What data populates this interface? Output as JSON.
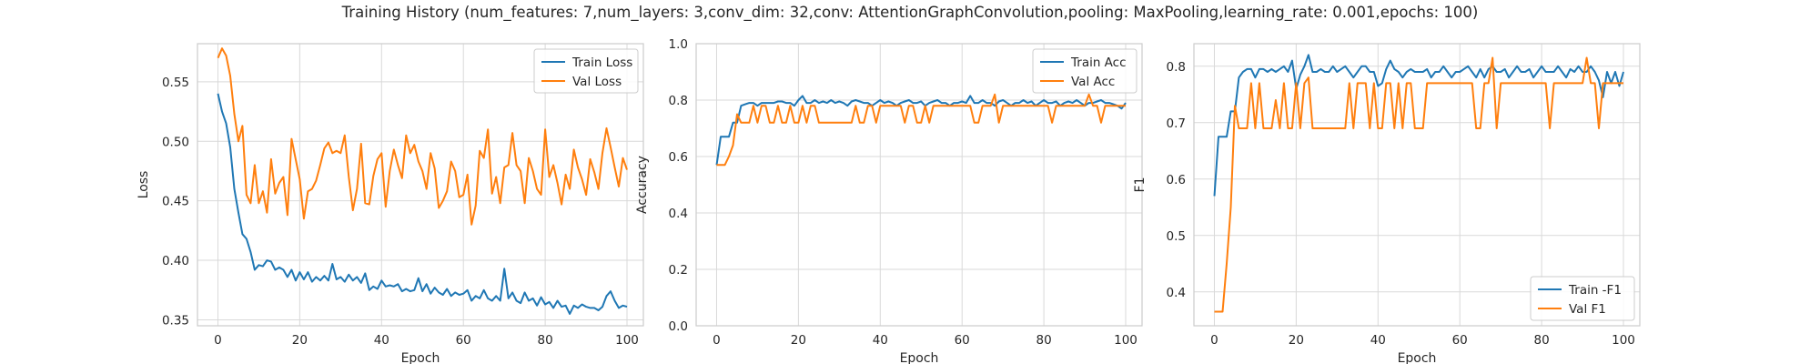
{
  "title": "Training History (num_features: 7,num_layers: 3,conv_dim: 32,conv: AttentionGraphConvolution,pooling: MaxPooling,learning_rate: 0.001,epochs: 100)",
  "colors": {
    "blue": "#1f77b4",
    "orange": "#ff7f0e",
    "grid": "#d9d9d9",
    "frame": "#cccccc"
  },
  "chart_data": [
    {
      "type": "line",
      "xlabel": "Epoch",
      "ylabel": "Loss",
      "xlim": [
        -5,
        104
      ],
      "ylim": [
        0.345,
        0.582
      ],
      "xticks": [
        "0",
        "20",
        "40",
        "60",
        "80",
        "100"
      ],
      "yticks": [
        "0.35",
        "0.40",
        "0.45",
        "0.50",
        "0.55"
      ],
      "grid": true,
      "legend": "top-right",
      "x_start": 0,
      "series": [
        {
          "name": "Train Loss",
          "color": "#1f77b4",
          "values": [
            0.54,
            0.525,
            0.515,
            0.495,
            0.46,
            0.44,
            0.422,
            0.418,
            0.407,
            0.392,
            0.396,
            0.395,
            0.4,
            0.399,
            0.392,
            0.394,
            0.392,
            0.386,
            0.392,
            0.383,
            0.39,
            0.384,
            0.39,
            0.382,
            0.386,
            0.383,
            0.387,
            0.383,
            0.397,
            0.384,
            0.386,
            0.382,
            0.388,
            0.383,
            0.386,
            0.381,
            0.389,
            0.375,
            0.378,
            0.376,
            0.383,
            0.378,
            0.379,
            0.378,
            0.38,
            0.374,
            0.376,
            0.374,
            0.375,
            0.385,
            0.374,
            0.38,
            0.372,
            0.377,
            0.373,
            0.371,
            0.376,
            0.37,
            0.373,
            0.371,
            0.372,
            0.375,
            0.366,
            0.37,
            0.368,
            0.375,
            0.368,
            0.366,
            0.37,
            0.366,
            0.393,
            0.368,
            0.373,
            0.366,
            0.364,
            0.373,
            0.366,
            0.368,
            0.362,
            0.369,
            0.363,
            0.365,
            0.36,
            0.366,
            0.361,
            0.362,
            0.355,
            0.362,
            0.36,
            0.363,
            0.361,
            0.36,
            0.36,
            0.358,
            0.361,
            0.37,
            0.374,
            0.366,
            0.36,
            0.362,
            0.361
          ]
        },
        {
          "name": "Val Loss",
          "color": "#ff7f0e",
          "values": [
            0.57,
            0.578,
            0.572,
            0.555,
            0.523,
            0.5,
            0.513,
            0.455,
            0.448,
            0.48,
            0.448,
            0.458,
            0.44,
            0.485,
            0.456,
            0.465,
            0.47,
            0.438,
            0.502,
            0.485,
            0.468,
            0.435,
            0.458,
            0.46,
            0.467,
            0.48,
            0.494,
            0.499,
            0.49,
            0.492,
            0.49,
            0.505,
            0.47,
            0.442,
            0.46,
            0.498,
            0.448,
            0.447,
            0.471,
            0.485,
            0.49,
            0.445,
            0.475,
            0.493,
            0.48,
            0.469,
            0.505,
            0.49,
            0.497,
            0.483,
            0.475,
            0.46,
            0.49,
            0.477,
            0.444,
            0.45,
            0.458,
            0.483,
            0.475,
            0.453,
            0.455,
            0.472,
            0.43,
            0.446,
            0.492,
            0.486,
            0.51,
            0.456,
            0.47,
            0.448,
            0.478,
            0.48,
            0.507,
            0.48,
            0.475,
            0.448,
            0.486,
            0.475,
            0.46,
            0.455,
            0.51,
            0.47,
            0.48,
            0.465,
            0.447,
            0.472,
            0.46,
            0.493,
            0.478,
            0.468,
            0.455,
            0.485,
            0.474,
            0.46,
            0.49,
            0.511,
            0.495,
            0.478,
            0.462,
            0.486,
            0.476
          ]
        }
      ]
    },
    {
      "type": "line",
      "xlabel": "Epoch",
      "ylabel": "Accuracy",
      "xlim": [
        -5,
        104
      ],
      "ylim": [
        0.0,
        1.0
      ],
      "xticks": [
        "0",
        "20",
        "40",
        "60",
        "80",
        "100"
      ],
      "yticks": [
        "0.0",
        "0.2",
        "0.4",
        "0.6",
        "0.8",
        "1.0"
      ],
      "grid": true,
      "legend": "top-right",
      "x_start": 0,
      "series": [
        {
          "name": "Train Acc",
          "color": "#1f77b4",
          "values": [
            0.57,
            0.67,
            0.67,
            0.67,
            0.72,
            0.72,
            0.78,
            0.785,
            0.79,
            0.79,
            0.78,
            0.79,
            0.79,
            0.79,
            0.79,
            0.795,
            0.795,
            0.79,
            0.79,
            0.78,
            0.8,
            0.815,
            0.79,
            0.79,
            0.8,
            0.79,
            0.795,
            0.79,
            0.8,
            0.79,
            0.795,
            0.79,
            0.78,
            0.795,
            0.8,
            0.795,
            0.79,
            0.79,
            0.78,
            0.79,
            0.8,
            0.79,
            0.795,
            0.79,
            0.78,
            0.79,
            0.795,
            0.8,
            0.79,
            0.79,
            0.795,
            0.78,
            0.79,
            0.795,
            0.8,
            0.79,
            0.79,
            0.78,
            0.79,
            0.79,
            0.795,
            0.79,
            0.815,
            0.79,
            0.79,
            0.8,
            0.79,
            0.79,
            0.78,
            0.795,
            0.8,
            0.79,
            0.78,
            0.79,
            0.79,
            0.8,
            0.79,
            0.795,
            0.78,
            0.79,
            0.8,
            0.79,
            0.79,
            0.795,
            0.78,
            0.79,
            0.795,
            0.79,
            0.8,
            0.79,
            0.78,
            0.79,
            0.79,
            0.795,
            0.8,
            0.79,
            0.79,
            0.785,
            0.78,
            0.77,
            0.79
          ]
        },
        {
          "name": "Val Acc",
          "color": "#ff7f0e",
          "values": [
            0.57,
            0.57,
            0.57,
            0.6,
            0.64,
            0.75,
            0.72,
            0.72,
            0.72,
            0.78,
            0.72,
            0.78,
            0.78,
            0.72,
            0.72,
            0.78,
            0.72,
            0.72,
            0.78,
            0.72,
            0.72,
            0.78,
            0.72,
            0.78,
            0.78,
            0.72,
            0.72,
            0.72,
            0.72,
            0.72,
            0.72,
            0.72,
            0.72,
            0.72,
            0.78,
            0.72,
            0.72,
            0.78,
            0.78,
            0.72,
            0.78,
            0.78,
            0.78,
            0.78,
            0.78,
            0.78,
            0.72,
            0.78,
            0.78,
            0.72,
            0.72,
            0.78,
            0.72,
            0.78,
            0.78,
            0.78,
            0.78,
            0.78,
            0.78,
            0.78,
            0.78,
            0.78,
            0.78,
            0.72,
            0.72,
            0.78,
            0.78,
            0.78,
            0.82,
            0.72,
            0.78,
            0.78,
            0.78,
            0.78,
            0.78,
            0.78,
            0.78,
            0.78,
            0.78,
            0.78,
            0.78,
            0.78,
            0.72,
            0.78,
            0.78,
            0.78,
            0.78,
            0.78,
            0.78,
            0.78,
            0.78,
            0.82,
            0.78,
            0.78,
            0.72,
            0.78,
            0.78,
            0.78,
            0.78,
            0.78,
            0.78
          ]
        }
      ]
    },
    {
      "type": "line",
      "xlabel": "Epoch",
      "ylabel": "F1",
      "xlim": [
        -5,
        104
      ],
      "ylim": [
        0.34,
        0.84
      ],
      "xticks": [
        "0",
        "20",
        "40",
        "60",
        "80",
        "100"
      ],
      "yticks": [
        "0.4",
        "0.5",
        "0.6",
        "0.7",
        "0.8"
      ],
      "grid": true,
      "legend": "bottom-right",
      "x_start": 0,
      "series": [
        {
          "name": "Train -F1",
          "color": "#1f77b4",
          "values": [
            0.57,
            0.675,
            0.675,
            0.675,
            0.72,
            0.72,
            0.78,
            0.79,
            0.795,
            0.795,
            0.78,
            0.795,
            0.795,
            0.79,
            0.795,
            0.79,
            0.795,
            0.8,
            0.79,
            0.81,
            0.76,
            0.785,
            0.8,
            0.82,
            0.79,
            0.79,
            0.795,
            0.79,
            0.79,
            0.8,
            0.79,
            0.795,
            0.8,
            0.79,
            0.78,
            0.79,
            0.8,
            0.8,
            0.79,
            0.79,
            0.765,
            0.77,
            0.795,
            0.81,
            0.795,
            0.79,
            0.78,
            0.79,
            0.795,
            0.79,
            0.79,
            0.79,
            0.795,
            0.78,
            0.79,
            0.79,
            0.8,
            0.79,
            0.78,
            0.79,
            0.79,
            0.795,
            0.8,
            0.79,
            0.78,
            0.795,
            0.78,
            0.795,
            0.8,
            0.79,
            0.79,
            0.795,
            0.78,
            0.79,
            0.8,
            0.79,
            0.79,
            0.795,
            0.78,
            0.79,
            0.8,
            0.79,
            0.79,
            0.79,
            0.8,
            0.79,
            0.78,
            0.795,
            0.79,
            0.8,
            0.79,
            0.79,
            0.8,
            0.79,
            0.775,
            0.745,
            0.79,
            0.77,
            0.79,
            0.765,
            0.79
          ]
        },
        {
          "name": "Val F1",
          "color": "#ff7f0e",
          "values": [
            0.365,
            0.365,
            0.365,
            0.45,
            0.55,
            0.73,
            0.69,
            0.69,
            0.69,
            0.77,
            0.69,
            0.77,
            0.69,
            0.69,
            0.69,
            0.74,
            0.69,
            0.77,
            0.69,
            0.69,
            0.77,
            0.69,
            0.77,
            0.78,
            0.69,
            0.69,
            0.69,
            0.69,
            0.69,
            0.69,
            0.69,
            0.69,
            0.69,
            0.77,
            0.69,
            0.77,
            0.77,
            0.77,
            0.69,
            0.77,
            0.69,
            0.69,
            0.77,
            0.77,
            0.69,
            0.77,
            0.69,
            0.77,
            0.77,
            0.69,
            0.69,
            0.69,
            0.77,
            0.77,
            0.77,
            0.77,
            0.77,
            0.77,
            0.77,
            0.77,
            0.77,
            0.77,
            0.77,
            0.77,
            0.69,
            0.69,
            0.77,
            0.77,
            0.815,
            0.69,
            0.77,
            0.77,
            0.77,
            0.77,
            0.77,
            0.77,
            0.77,
            0.77,
            0.77,
            0.77,
            0.77,
            0.77,
            0.69,
            0.77,
            0.77,
            0.77,
            0.77,
            0.77,
            0.77,
            0.77,
            0.77,
            0.815,
            0.77,
            0.77,
            0.69,
            0.77,
            0.77,
            0.77,
            0.77,
            0.77,
            0.77
          ]
        }
      ]
    }
  ]
}
